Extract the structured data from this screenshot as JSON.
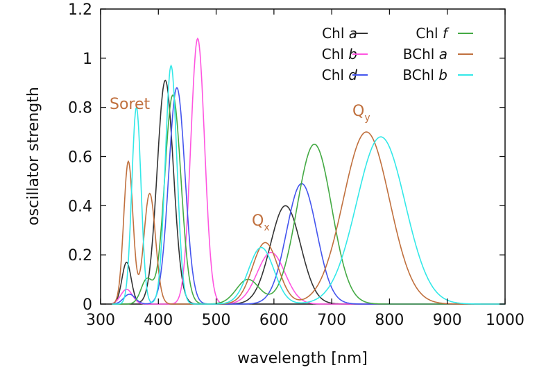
{
  "chart_data": {
    "type": "line",
    "xlabel": "wavelength [nm]",
    "ylabel": "oscillator strength",
    "xlim": [
      300,
      1000
    ],
    "ylim": [
      0,
      1.2
    ],
    "xticks": [
      "300",
      "400",
      "500",
      "600",
      "700",
      "800",
      "900",
      "1000"
    ],
    "yticks": [
      "0",
      "0.2",
      "0.4",
      "0.6",
      "0.8",
      "1",
      "1.2"
    ],
    "grid": false,
    "legend_position": "top-right",
    "annotations": [
      {
        "text": "Soret",
        "color": "#c0703e"
      },
      {
        "text": "Qx",
        "base": "Q",
        "sub": "x",
        "color": "#c0703e"
      },
      {
        "text": "Qy",
        "base": "Q",
        "sub": "y",
        "color": "#c0703e"
      }
    ],
    "series": [
      {
        "name": "Chl a",
        "legend_base": "Chl ",
        "legend_italic": "a",
        "color": "#333333",
        "peaks": [
          [
            345,
            0.17,
            8
          ],
          [
            412,
            0.91,
            14
          ],
          [
            620,
            0.4,
            26
          ]
        ]
      },
      {
        "name": "Chl b",
        "legend_base": "Chl ",
        "legend_italic": "b",
        "color": "#ff55e0",
        "peaks": [
          [
            345,
            0.06,
            10
          ],
          [
            468,
            1.08,
            12
          ],
          [
            595,
            0.21,
            24
          ]
        ]
      },
      {
        "name": "Chl d",
        "legend_base": "Chl ",
        "legend_italic": "d",
        "color": "#4455ee",
        "peaks": [
          [
            350,
            0.04,
            10
          ],
          [
            432,
            0.88,
            14
          ],
          [
            648,
            0.49,
            26
          ]
        ]
      },
      {
        "name": "Chl f",
        "legend_base": "Chl ",
        "legend_italic": "f",
        "color": "#44aa44",
        "peaks": [
          [
            380,
            0.1,
            10
          ],
          [
            425,
            0.85,
            14
          ],
          [
            555,
            0.1,
            20
          ],
          [
            670,
            0.65,
            30
          ]
        ]
      },
      {
        "name": "BChl a",
        "legend_base": "BChl ",
        "legend_italic": "a",
        "color": "#c0703e",
        "peaks": [
          [
            348,
            0.58,
            8
          ],
          [
            385,
            0.45,
            10
          ],
          [
            585,
            0.25,
            22
          ],
          [
            760,
            0.7,
            40
          ]
        ]
      },
      {
        "name": "BChl b",
        "legend_base": "BChl ",
        "legend_italic": "b",
        "color": "#33e8e8",
        "peaks": [
          [
            362,
            0.8,
            8
          ],
          [
            422,
            0.97,
            10
          ],
          [
            578,
            0.23,
            22
          ],
          [
            785,
            0.68,
            42
          ]
        ]
      }
    ]
  }
}
